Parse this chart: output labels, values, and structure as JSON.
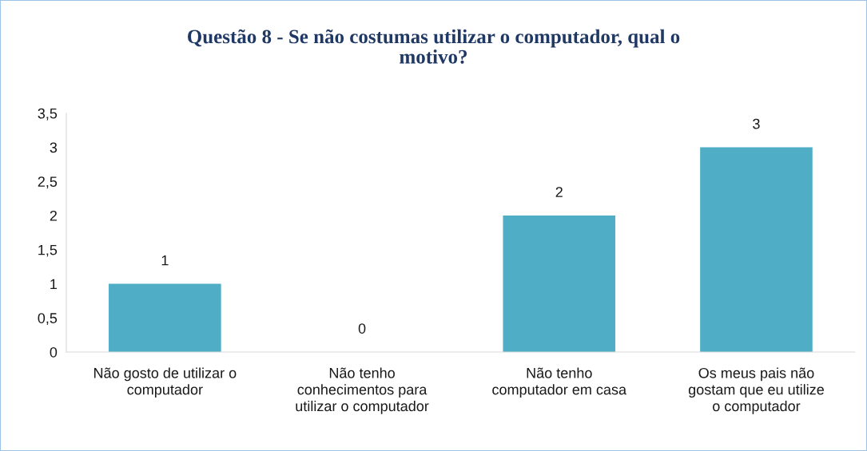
{
  "chart_data": {
    "type": "bar",
    "title": "Questão 8 - Se não costumas utilizar o computador, qual o\nmotivo?",
    "categories": [
      "Não gosto de utilizar o\ncomputador",
      "Não tenho\nconhecimentos para\nutilizar o computador",
      "Não tenho\ncomputador em casa",
      "Os meus pais não\ngostam que eu utilize\no computador"
    ],
    "values": [
      1,
      0,
      2,
      3
    ],
    "color": "#4faec6",
    "ylim": [
      0,
      3.5
    ],
    "yticks": [
      0,
      {
        "value": 0.5,
        "label": "0,5"
      },
      1,
      {
        "value": 1.5,
        "label": "1,5"
      },
      2,
      {
        "value": 2.5,
        "label": "2,5"
      },
      3,
      {
        "value": 3.5,
        "label": "3,5"
      }
    ],
    "data_labels": true,
    "grid": false,
    "legend": false
  }
}
